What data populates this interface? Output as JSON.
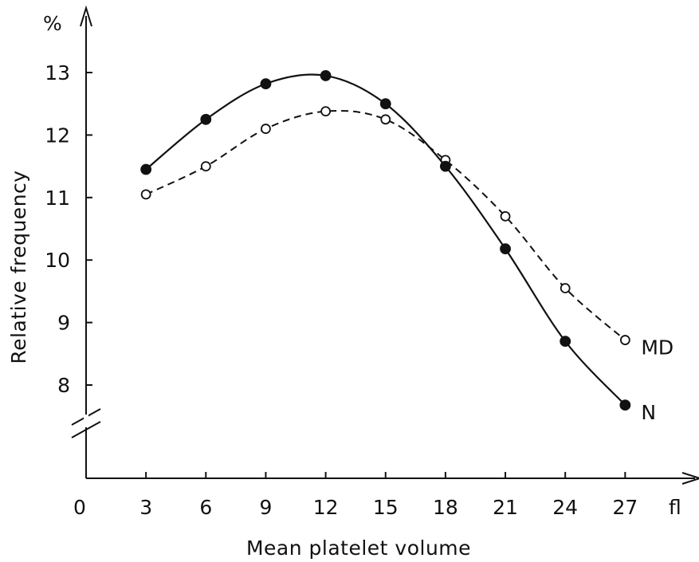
{
  "chart_data": {
    "type": "line",
    "title": "",
    "xlabel": "Mean platelet volume",
    "ylabel": "Relative frequency",
    "x_unit": "fl",
    "y_unit": "%",
    "x": [
      3,
      6,
      9,
      12,
      15,
      18,
      21,
      24,
      27
    ],
    "x_ticks": [
      0,
      3,
      6,
      9,
      12,
      15,
      18,
      21,
      24,
      27
    ],
    "y_ticks": [
      8,
      9,
      10,
      11,
      12,
      13
    ],
    "xlim": [
      0,
      28
    ],
    "ylim": [
      7,
      13.8
    ],
    "y_axis_break": true,
    "grid": false,
    "series": [
      {
        "name": "N",
        "marker": "filled-circle",
        "line": "solid",
        "color": "#111111",
        "values": [
          11.45,
          12.25,
          12.82,
          12.95,
          12.5,
          11.5,
          10.18,
          8.7,
          7.68
        ]
      },
      {
        "name": "MD",
        "marker": "open-circle",
        "line": "dashed",
        "color": "#111111",
        "values": [
          11.05,
          11.5,
          12.1,
          12.38,
          12.25,
          11.6,
          10.7,
          9.55,
          8.72
        ]
      }
    ]
  }
}
